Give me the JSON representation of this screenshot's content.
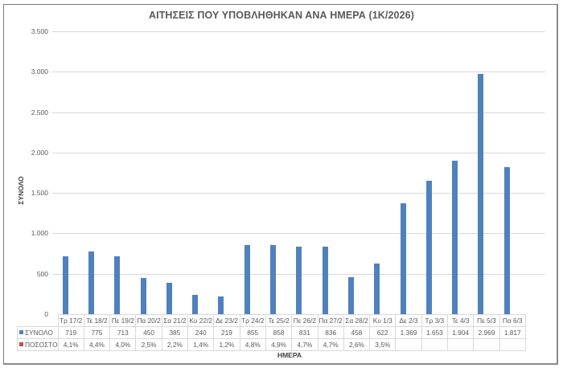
{
  "chart_data": {
    "type": "bar",
    "title": "ΑΙΤΗΣΕΙΣ ΠΟΥ ΥΠΟΒΛΗΘΗΚΑΝ ΑΝΑ ΗΜΕΡΑ (1Κ/2026)",
    "xlabel": "ΗΜΕΡΑ",
    "ylabel": "ΣΥΝΟΛΟ",
    "ylim": [
      0,
      3500
    ],
    "yticks": [
      "0",
      "500",
      "1.000",
      "1.500",
      "2.000",
      "2.500",
      "3.000",
      "3.500"
    ],
    "grid": true,
    "legend_position": "data-table",
    "categories": [
      "Τρ 17/2",
      "Τε 18/2",
      "Πε 19/2",
      "Πα 20/2",
      "Σα 21/2",
      "Κυ 22/2",
      "Δε 23/2",
      "Τρ 24/2",
      "Τε 25/2",
      "Πε 26/2",
      "Πα 27/2",
      "Σα 28/2",
      "Κυ 1/3",
      "Δε 2/3",
      "Τρ 3/3",
      "Τε 4/3",
      "Πε 5/3",
      "Πα 6/3"
    ],
    "series": [
      {
        "name": "ΣΥΝΟΛΟ",
        "color": "#4f81bd",
        "values": [
          719,
          775,
          713,
          450,
          385,
          240,
          219,
          855,
          858,
          831,
          836,
          458,
          622,
          1369,
          1653,
          1904,
          2969,
          1817
        ],
        "labels": [
          "719",
          "775",
          "713",
          "450",
          "385",
          "240",
          "219",
          "855",
          "858",
          "831",
          "836",
          "458",
          "622",
          "1.369",
          "1.653",
          "1.904",
          "2.969",
          "1.817"
        ]
      },
      {
        "name": "ΠΟΣΟΣΤΟ",
        "color": "#c0504d",
        "values": [
          4.1,
          4.4,
          4.0,
          2.5,
          2.2,
          1.4,
          1.2,
          4.8,
          4.9,
          4.7,
          4.7,
          2.6,
          3.5,
          null,
          null,
          null,
          null,
          null
        ],
        "labels": [
          "4,1%",
          "4,4%",
          "4,0%",
          "2,5%",
          "2,2%",
          "1,4%",
          "1,2%",
          "4,8%",
          "4,9%",
          "4,7%",
          "4,7%",
          "2,6%",
          "3,5%",
          "",
          "",
          "",
          "",
          ""
        ]
      }
    ]
  }
}
